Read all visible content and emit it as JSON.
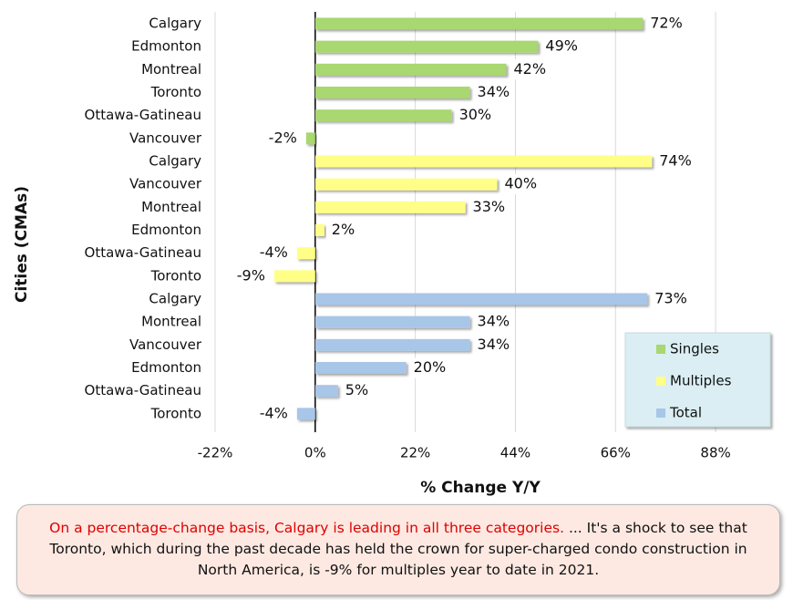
{
  "chart_data": {
    "type": "bar",
    "orientation": "horizontal",
    "categories": [
      "Calgary",
      "Edmonton",
      "Montreal",
      "Toronto",
      "Ottawa-Gatineau",
      "Vancouver",
      "Calgary",
      "Vancouver",
      "Montreal",
      "Edmonton",
      "Ottawa-Gatineau",
      "Toronto",
      "Calgary",
      "Montreal",
      "Vancouver",
      "Edmonton",
      "Ottawa-Gatineau",
      "Toronto"
    ],
    "series": [
      {
        "name": "Singles",
        "color": "#a9d770",
        "values": [
          72,
          49,
          42,
          34,
          30,
          -2,
          null,
          null,
          null,
          null,
          null,
          null,
          null,
          null,
          null,
          null,
          null,
          null
        ],
        "value_labels": [
          "72%",
          "49%",
          "42%",
          "34%",
          "30%",
          "-2%",
          null,
          null,
          null,
          null,
          null,
          null,
          null,
          null,
          null,
          null,
          null,
          null
        ]
      },
      {
        "name": "Multiples",
        "color": "#ffff88",
        "values": [
          null,
          null,
          null,
          null,
          null,
          null,
          74,
          40,
          33,
          2,
          -4,
          -9,
          null,
          null,
          null,
          null,
          null,
          null
        ],
        "value_labels": [
          null,
          null,
          null,
          null,
          null,
          null,
          "74%",
          "40%",
          "33%",
          "2%",
          "-4%",
          "-9%",
          null,
          null,
          null,
          null,
          null,
          null
        ]
      },
      {
        "name": "Total",
        "color": "#a8c6e8",
        "values": [
          null,
          null,
          null,
          null,
          null,
          null,
          null,
          null,
          null,
          null,
          null,
          null,
          73,
          34,
          34,
          20,
          5,
          -4
        ],
        "value_labels": [
          null,
          null,
          null,
          null,
          null,
          null,
          null,
          null,
          null,
          null,
          null,
          null,
          "73%",
          "34%",
          "34%",
          "20%",
          "5%",
          "-4%"
        ]
      }
    ],
    "xlim": [
      -22,
      100
    ],
    "xticks": [
      {
        "value": -22,
        "label": "-22%"
      },
      {
        "value": 0,
        "label": "0%"
      },
      {
        "value": 22,
        "label": "22%"
      },
      {
        "value": 44,
        "label": "44%"
      },
      {
        "value": 66,
        "label": "66%"
      },
      {
        "value": 88,
        "label": "88%"
      }
    ],
    "grid": true,
    "x_label": "% Change Y/Y",
    "y_label": "Cities (CMAs)",
    "legend": "lower right"
  },
  "annotation": {
    "highlight": "On a percentage-change basis, Calgary is leading in all three categories.",
    "text": "... It's a shock to see that Toronto, which during the past decade has held the crown for super-charged condo construction in North America, is -9% for multiples year to date in 2021."
  }
}
